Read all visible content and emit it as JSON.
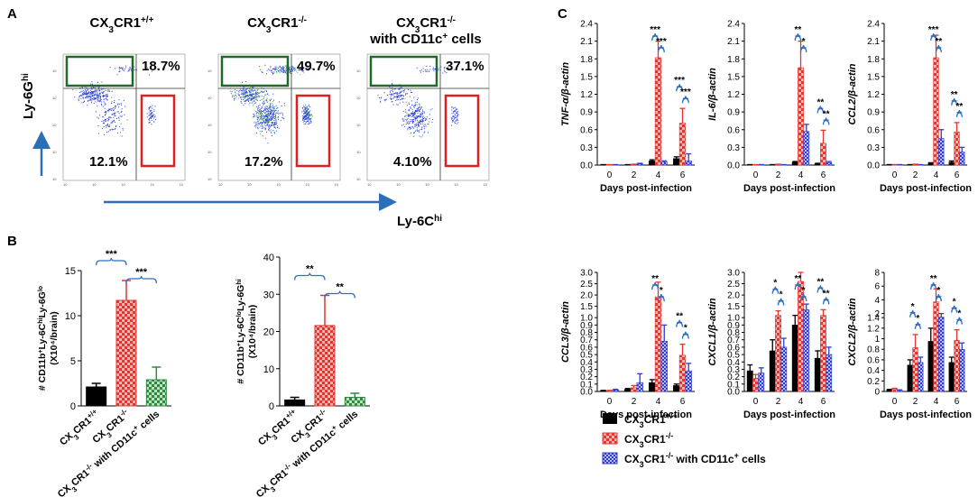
{
  "panel_labels": {
    "a": "A",
    "b": "B",
    "c": "C"
  },
  "colors": {
    "wt": "#000000",
    "ko": "#e8332e",
    "ko_cd": "#2f3bd0",
    "bracket": "#2f6fbf",
    "gate_green": "#1f6a2a",
    "gate_red": "#e02020",
    "arrow": "#2a6fb8"
  },
  "flow": {
    "axis_y": "Ly-6G",
    "axis_y_sup": "hi",
    "axis_x": "Ly-6C",
    "axis_x_sup": "hi",
    "panels": [
      {
        "title": "CX",
        "title_sub": "3",
        "title_mid": "CR1",
        "title_sup": "+/+",
        "title2": "",
        "upper_pct": "18.7%",
        "lower_pct": "12.1%"
      },
      {
        "title": "CX",
        "title_sub": "3",
        "title_mid": "CR1",
        "title_sup": "-/-",
        "title2": "",
        "upper_pct": "49.7%",
        "lower_pct": "17.2%"
      },
      {
        "title": "CX",
        "title_sub": "3",
        "title_mid": "CR1",
        "title_sup": "-/-",
        "title2": "with CD11c",
        "title2_sup": "+",
        "title2_end": " cells",
        "upper_pct": "37.1%",
        "lower_pct": "4.10%"
      }
    ]
  },
  "group_labels": {
    "wt": {
      "a": "CX",
      "sub": "3",
      "b": "CR1",
      "sup": "+/+"
    },
    "ko": {
      "a": "CX",
      "sub": "3",
      "b": "CR1",
      "sup": "-/-"
    },
    "ko_cd": {
      "a": "CX",
      "sub": "3",
      "b": "CR1",
      "sup": "-/-",
      "c": " with CD11c",
      "sup2": "+",
      "d": " cells"
    }
  },
  "chart_data": [
    {
      "id": "B1",
      "type": "bar",
      "ylabel": [
        "# CD11b",
        "+",
        "Ly-6C",
        "hi",
        "Ly-6G",
        "lo"
      ],
      "ylabel2": "(X10⁴/brain)",
      "ylim": [
        0,
        15
      ],
      "yticks": [
        0,
        5,
        10,
        15
      ],
      "categories": [
        "wt",
        "ko",
        "ko_cd"
      ],
      "values": [
        2.1,
        11.7,
        2.9
      ],
      "errors": [
        0.4,
        2.2,
        1.4
      ],
      "sig": [
        {
          "text": "***",
          "from": 0,
          "to": 1
        },
        {
          "text": "***",
          "from": 1,
          "to": 2
        }
      ]
    },
    {
      "id": "B2",
      "type": "bar",
      "ylabel": [
        "# CD11b",
        "+",
        "Ly-6C",
        "lo",
        "Ly-6G",
        "hi"
      ],
      "ylabel2": "(X10⁴/brain)",
      "ylim": [
        0,
        40
      ],
      "yticks": [
        0,
        10,
        20,
        30,
        40
      ],
      "categories": [
        "wt",
        "ko",
        "ko_cd"
      ],
      "values": [
        1.6,
        21.6,
        2.3
      ],
      "errors": [
        0.7,
        8.1,
        1.1
      ],
      "sig": [
        {
          "text": "**",
          "from": 0,
          "to": 1
        },
        {
          "text": "**",
          "from": 1,
          "to": 2
        }
      ]
    },
    {
      "id": "C1",
      "type": "bar",
      "ylabel": "TNF-α/β-actin",
      "xlabel": "Days post-infection",
      "x": [
        0,
        2,
        4,
        6
      ],
      "ylim": [
        0,
        2.4
      ],
      "yticks": [
        0,
        0.3,
        0.6,
        0.9,
        1.2,
        1.5,
        1.8,
        2.1,
        2.4
      ],
      "series": [
        {
          "name": "wt",
          "values": [
            0.005,
            0.005,
            0.07,
            0.11
          ],
          "errors": [
            0.003,
            0.003,
            0.02,
            0.03
          ]
        },
        {
          "name": "ko",
          "values": [
            0.005,
            0.01,
            1.82,
            0.71
          ],
          "errors": [
            0.003,
            0.005,
            0.28,
            0.25
          ]
        },
        {
          "name": "ko_cd",
          "values": [
            0.005,
            0.02,
            0.05,
            0.07
          ],
          "errors": [
            0.003,
            0.01,
            0.02,
            0.12
          ]
        }
      ],
      "sig": [
        {
          "day": 2,
          "top": "***",
          "bottom": "***"
        },
        {
          "day": 3,
          "top": "***",
          "bottom": "***"
        }
      ]
    },
    {
      "id": "C2",
      "type": "bar",
      "ylabel": "IL-6/β-actin",
      "xlabel": "Days post-infection",
      "x": [
        0,
        2,
        4,
        6
      ],
      "ylim": [
        0,
        2.4
      ],
      "yticks": [
        0,
        0.3,
        0.6,
        0.9,
        1.2,
        1.5,
        1.8,
        2.1,
        2.4
      ],
      "series": [
        {
          "name": "wt",
          "values": [
            0.005,
            0.005,
            0.05,
            0.02
          ],
          "errors": [
            0.003,
            0.003,
            0.01,
            0.01
          ]
        },
        {
          "name": "ko",
          "values": [
            0.005,
            0.01,
            1.65,
            0.37
          ],
          "errors": [
            0.003,
            0.005,
            0.45,
            0.22
          ]
        },
        {
          "name": "ko_cd",
          "values": [
            0.005,
            0.005,
            0.57,
            0.04
          ],
          "errors": [
            0.003,
            0.003,
            0.12,
            0.02
          ]
        }
      ],
      "sig": [
        {
          "day": 2,
          "top": "**",
          "bottom": "*"
        },
        {
          "day": 3,
          "top": "**",
          "bottom": "**"
        }
      ]
    },
    {
      "id": "C3",
      "type": "bar",
      "ylabel": "CCL2/β-actin",
      "xlabel": "Days post-infection",
      "x": [
        0,
        2,
        4,
        6
      ],
      "ylim": [
        0,
        2.4
      ],
      "yticks": [
        0,
        0.3,
        0.6,
        0.9,
        1.2,
        1.5,
        1.8,
        2.1,
        2.4
      ],
      "series": [
        {
          "name": "wt",
          "values": [
            0.005,
            0.005,
            0.03,
            0.05
          ],
          "errors": [
            0.003,
            0.003,
            0.01,
            0.02
          ]
        },
        {
          "name": "ko",
          "values": [
            0.005,
            0.01,
            1.82,
            0.56
          ],
          "errors": [
            0.003,
            0.005,
            0.38,
            0.16
          ]
        },
        {
          "name": "ko_cd",
          "values": [
            0.005,
            0.005,
            0.45,
            0.22
          ],
          "errors": [
            0.003,
            0.003,
            0.15,
            0.08
          ]
        }
      ],
      "sig": [
        {
          "day": 2,
          "top": "***",
          "bottom": "**"
        },
        {
          "day": 3,
          "top": "**",
          "bottom": "**"
        }
      ]
    },
    {
      "id": "C4",
      "type": "bar",
      "ylabel": "CCL3/β-actin",
      "xlabel": "Days post-infection",
      "x": [
        0,
        2,
        4,
        6
      ],
      "ylim": [
        0,
        3.0
      ],
      "yticks": [
        0,
        0.1,
        0.2,
        0.3,
        0.4,
        0.5,
        0.6,
        0.7,
        0.8,
        0.9,
        1.0,
        1.5,
        2.0,
        2.5,
        3.0
      ],
      "break": [
        1.0,
        0.5
      ],
      "series": [
        {
          "name": "wt",
          "values": [
            0.01,
            0.03,
            0.12,
            0.08
          ],
          "errors": [
            0.005,
            0.01,
            0.04,
            0.02
          ]
        },
        {
          "name": "ko",
          "values": [
            0.01,
            0.05,
            1.92,
            0.49
          ],
          "errors": [
            0.005,
            0.03,
            0.65,
            0.15
          ]
        },
        {
          "name": "ko_cd",
          "values": [
            0.02,
            0.12,
            0.68,
            0.28
          ],
          "errors": [
            0.01,
            0.12,
            0.22,
            0.1
          ]
        }
      ],
      "sig": [
        {
          "day": 2,
          "top": "**",
          "bottom": "*"
        },
        {
          "day": 3,
          "top": "**",
          "bottom": "*"
        }
      ]
    },
    {
      "id": "C5",
      "type": "bar",
      "ylabel": "CXCL1/β-actin",
      "xlabel": "Days post-infection",
      "x": [
        0,
        2,
        4,
        6
      ],
      "ylim": [
        0,
        3.0
      ],
      "yticks": [
        0,
        0.1,
        0.2,
        0.3,
        0.4,
        0.5,
        0.6,
        0.7,
        0.8,
        0.9,
        1.0,
        1.5,
        2.0,
        2.5,
        3.0
      ],
      "break": [
        1.0,
        0.5
      ],
      "series": [
        {
          "name": "wt",
          "values": [
            0.28,
            0.55,
            0.9,
            0.45
          ],
          "errors": [
            0.08,
            0.15,
            0.2,
            0.1
          ]
        },
        {
          "name": "ko",
          "values": [
            0.18,
            1.1,
            2.6,
            1.1
          ],
          "errors": [
            0.05,
            0.2,
            0.5,
            0.25
          ]
        },
        {
          "name": "ko_cd",
          "values": [
            0.25,
            0.6,
            1.35,
            0.5
          ],
          "errors": [
            0.07,
            0.12,
            0.25,
            0.1
          ]
        }
      ],
      "sig": [
        {
          "day": 1,
          "top": "*",
          "bottom": "*"
        },
        {
          "day": 2,
          "top": "**",
          "bottom": "*"
        },
        {
          "day": 3,
          "top": "**",
          "bottom": "**"
        }
      ]
    },
    {
      "id": "C6",
      "type": "bar",
      "ylabel": "CXCL2/β-actin",
      "xlabel": "Days post-infection",
      "x": [
        0,
        2,
        4,
        6
      ],
      "ylim": [
        0,
        8
      ],
      "yticks": [
        0,
        0.2,
        0.4,
        0.6,
        0.8,
        1.0,
        1.2,
        1.4,
        2,
        4,
        6,
        8
      ],
      "break": [
        1.4,
        0.5
      ],
      "series": [
        {
          "name": "wt",
          "values": [
            0.03,
            0.5,
            0.95,
            0.55
          ],
          "errors": [
            0.01,
            0.1,
            0.25,
            0.1
          ]
        },
        {
          "name": "ko",
          "values": [
            0.05,
            0.83,
            3.7,
            0.97
          ],
          "errors": [
            0.01,
            0.25,
            1.9,
            0.2
          ]
        },
        {
          "name": "ko_cd",
          "values": [
            0.02,
            0.55,
            1.5,
            0.8
          ],
          "errors": [
            0.01,
            0.1,
            0.5,
            0.12
          ]
        }
      ],
      "sig": [
        {
          "day": 1,
          "top": "*",
          "bottom": "*"
        },
        {
          "day": 2,
          "top": "**",
          "bottom": "*"
        },
        {
          "day": 3,
          "top": "*",
          "bottom": "*"
        }
      ]
    }
  ]
}
